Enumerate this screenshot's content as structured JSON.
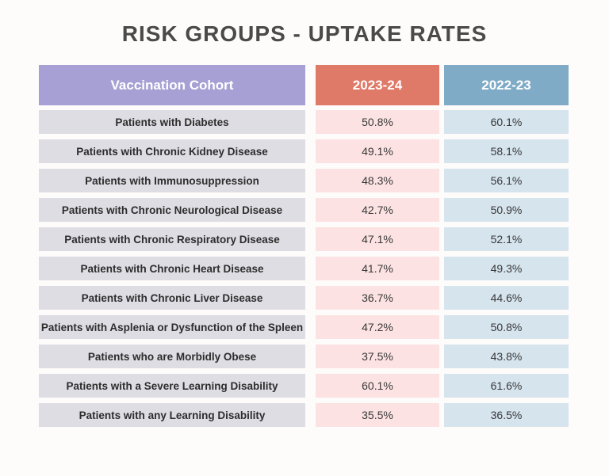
{
  "page_title": "RISK GROUPS - UPTAKE RATES",
  "colors": {
    "page-bg": "#fefbfb",
    "title-color": "#4a4a4a",
    "header-purple": "#a7a0d4",
    "header-salmon": "#e07a68",
    "header-blue": "#80abc7",
    "cell-lavender": "#dedde4",
    "cell-pink": "#fce2e2",
    "cell-blue": "#d6e4ee",
    "label-text": "#2d2d2d",
    "value-text": "#383838"
  },
  "table": {
    "headers": {
      "cohort": "Vaccination Cohort",
      "season_2023_24": "2023-24",
      "season_2022_23": "2022-23"
    },
    "rows": [
      {
        "label": "Patients with Diabetes",
        "y2023_24": "50.8%",
        "y2022_23": "60.1%"
      },
      {
        "label": "Patients with Chronic Kidney Disease",
        "y2023_24": "49.1%",
        "y2022_23": "58.1%"
      },
      {
        "label": "Patients with Immunosuppression",
        "y2023_24": "48.3%",
        "y2022_23": "56.1%"
      },
      {
        "label": "Patients with Chronic Neurological Disease",
        "y2023_24": "42.7%",
        "y2022_23": "50.9%"
      },
      {
        "label": "Patients with Chronic Respiratory Disease",
        "y2023_24": "47.1%",
        "y2022_23": "52.1%"
      },
      {
        "label": "Patients with Chronic Heart Disease",
        "y2023_24": "41.7%",
        "y2022_23": "49.3%"
      },
      {
        "label": "Patients with Chronic Liver Disease",
        "y2023_24": "36.7%",
        "y2022_23": "44.6%"
      },
      {
        "label": "Patients with Asplenia or Dysfunction of the Spleen",
        "y2023_24": "47.2%",
        "y2022_23": "50.8%"
      },
      {
        "label": "Patients who are Morbidly Obese",
        "y2023_24": "37.5%",
        "y2022_23": "43.8%"
      },
      {
        "label": "Patients with a Severe Learning Disability",
        "y2023_24": "60.1%",
        "y2022_23": "61.6%"
      },
      {
        "label": "Patients with any Learning Disability",
        "y2023_24": "35.5%",
        "y2022_23": "36.5%"
      }
    ]
  },
  "chart_data": {
    "type": "table",
    "title": "RISK GROUPS - UPTAKE RATES",
    "columns": [
      "Vaccination Cohort",
      "2023-24",
      "2022-23"
    ],
    "categories": [
      "Patients with Diabetes",
      "Patients with Chronic Kidney Disease",
      "Patients with Immunosuppression",
      "Patients with Chronic Neurological Disease",
      "Patients with Chronic Respiratory Disease",
      "Patients with Chronic Heart Disease",
      "Patients with Chronic Liver Disease",
      "Patients with Asplenia or Dysfunction of the Spleen",
      "Patients who are Morbidly Obese",
      "Patients with a Severe Learning Disability",
      "Patients with any Learning Disability"
    ],
    "series": [
      {
        "name": "2023-24",
        "values": [
          50.8,
          49.1,
          48.3,
          42.7,
          47.1,
          41.7,
          36.7,
          47.2,
          37.5,
          60.1,
          35.5
        ]
      },
      {
        "name": "2022-23",
        "values": [
          60.1,
          58.1,
          56.1,
          50.9,
          52.1,
          49.3,
          44.6,
          50.8,
          43.8,
          61.6,
          36.5
        ]
      }
    ],
    "value_unit": "%"
  }
}
